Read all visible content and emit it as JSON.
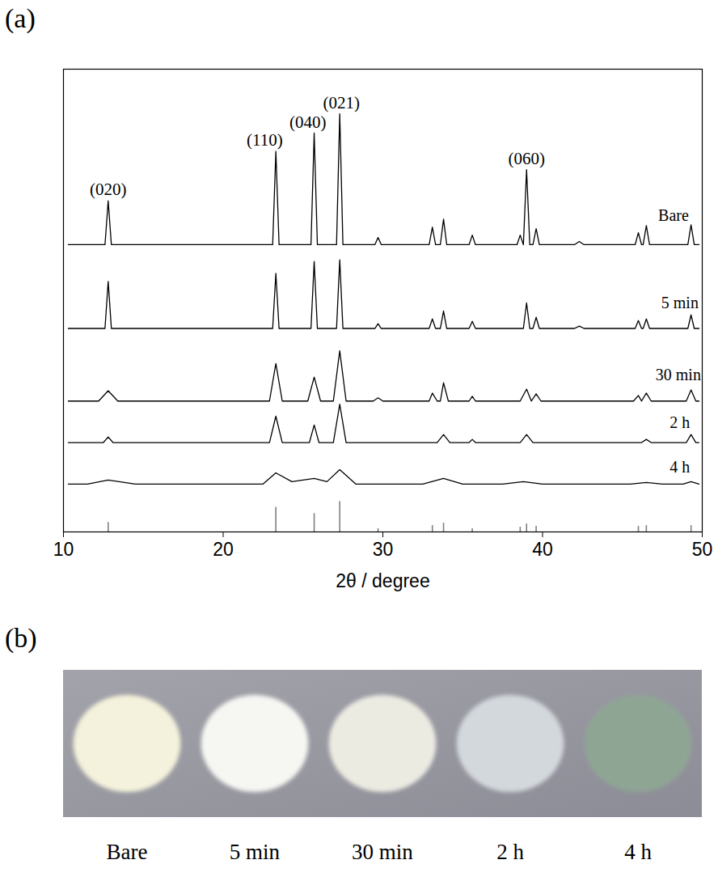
{
  "chart_data": {
    "type": "line",
    "panel_label": "(a)",
    "xlabel": "2θ / degree",
    "xlim": [
      10,
      50
    ],
    "xticks": [
      10,
      20,
      30,
      40,
      50
    ],
    "ylim": [
      0,
      580
    ],
    "tick_labels": "x",
    "series": [
      {
        "name": "Bare",
        "color": "#000000",
        "label_at": [
          48.2,
          390
        ],
        "x": [
          10.3,
          12.6,
          12.8,
          13.0,
          23.1,
          23.3,
          23.5,
          25.5,
          25.7,
          25.9,
          27.1,
          27.3,
          27.5,
          29.5,
          29.7,
          29.9,
          32.9,
          33.1,
          33.3,
          33.6,
          33.8,
          34.0,
          35.4,
          35.6,
          35.8,
          38.4,
          38.6,
          38.8,
          39.0,
          39.2,
          39.4,
          39.6,
          39.8,
          42.0,
          42.3,
          42.6,
          45.8,
          46.0,
          46.2,
          46.3,
          46.5,
          46.7,
          49.1,
          49.3,
          49.5,
          49.8
        ],
        "values": [
          360,
          360,
          415,
          360,
          360,
          477,
          360,
          360,
          500,
          360,
          360,
          524,
          360,
          360,
          369,
          360,
          360,
          382,
          360,
          360,
          392,
          360,
          360,
          372,
          360,
          360,
          372,
          360,
          454,
          360,
          360,
          380,
          360,
          360,
          364,
          360,
          360,
          375,
          360,
          360,
          384,
          360,
          360,
          385,
          360,
          360
        ]
      },
      {
        "name": "5 min",
        "color": "#000000",
        "label_at": [
          48.6,
          280
        ],
        "x": [
          10.3,
          12.6,
          12.8,
          13.0,
          23.1,
          23.3,
          23.5,
          25.5,
          25.7,
          25.9,
          27.1,
          27.3,
          27.5,
          29.5,
          29.7,
          29.9,
          32.9,
          33.1,
          33.3,
          33.6,
          33.8,
          34.0,
          35.4,
          35.6,
          35.8,
          38.4,
          38.6,
          38.8,
          39.0,
          39.2,
          39.4,
          39.6,
          39.8,
          42.0,
          42.3,
          42.6,
          45.8,
          46.0,
          46.2,
          46.3,
          46.5,
          46.7,
          49.1,
          49.3,
          49.5,
          49.8
        ],
        "values": [
          255,
          255,
          314,
          255,
          255,
          324,
          255,
          255,
          339,
          255,
          255,
          341,
          255,
          255,
          261,
          255,
          255,
          267,
          255,
          255,
          277,
          255,
          255,
          264,
          255,
          255,
          255,
          255,
          287,
          255,
          255,
          269,
          255,
          255,
          258,
          255,
          255,
          265,
          255,
          255,
          267,
          255,
          255,
          272,
          255,
          255
        ]
      },
      {
        "name": "30 min",
        "color": "#000000",
        "label_at": [
          48.5,
          190
        ],
        "x": [
          10.3,
          12.2,
          12.8,
          13.4,
          22.9,
          23.3,
          23.7,
          25.3,
          25.7,
          26.1,
          26.9,
          27.3,
          27.7,
          29.4,
          29.7,
          30.0,
          32.9,
          33.1,
          33.4,
          33.6,
          33.8,
          34.1,
          35.4,
          35.6,
          35.8,
          38.6,
          39.0,
          39.3,
          39.6,
          39.9,
          45.7,
          46.0,
          46.2,
          46.5,
          46.8,
          49.0,
          49.3,
          49.6,
          49.8
        ],
        "values": [
          164,
          164,
          177,
          164,
          164,
          211,
          164,
          164,
          194,
          164,
          164,
          227,
          164,
          164,
          168,
          164,
          164,
          174,
          164,
          164,
          187,
          164,
          164,
          170,
          164,
          164,
          179,
          164,
          173,
          164,
          164,
          171,
          164,
          174,
          164,
          164,
          178,
          164,
          164
        ]
      },
      {
        "name": "2 h",
        "color": "#000000",
        "label_at": [
          48.6,
          130
        ],
        "x": [
          10.3,
          12.5,
          12.8,
          13.1,
          22.9,
          23.3,
          23.7,
          25.4,
          25.7,
          26.0,
          26.9,
          27.3,
          27.7,
          33.4,
          33.8,
          34.2,
          35.4,
          35.6,
          35.8,
          38.6,
          39.0,
          39.4,
          46.2,
          46.5,
          46.8,
          49.0,
          49.3,
          49.6,
          49.8
        ],
        "values": [
          112,
          112,
          119,
          112,
          112,
          145,
          112,
          112,
          134,
          112,
          112,
          160,
          112,
          112,
          122,
          112,
          112,
          116,
          112,
          112,
          122,
          112,
          112,
          116,
          112,
          112,
          122,
          112,
          112
        ]
      },
      {
        "name": "4 h",
        "color": "#000000",
        "label_at": [
          48.6,
          75
        ],
        "x": [
          10.3,
          11.5,
          12.8,
          14.5,
          22.5,
          23.3,
          24.3,
          25.7,
          26.5,
          27.3,
          28.3,
          32.5,
          33.8,
          35.0,
          37.5,
          38.8,
          40.0,
          45.5,
          46.5,
          47.5,
          48.8,
          49.3,
          49.8
        ],
        "values": [
          60,
          60,
          65,
          60,
          60,
          74,
          63,
          67,
          63,
          78,
          60,
          60,
          67,
          60,
          60,
          63,
          60,
          60,
          62,
          60,
          60,
          63,
          60
        ]
      },
      {
        "type": "stick",
        "color": "#808080",
        "x": [
          12.8,
          23.3,
          25.7,
          27.3,
          29.7,
          33.1,
          33.8,
          35.6,
          38.6,
          39.0,
          39.6,
          46.0,
          46.5,
          49.3
        ],
        "values": [
          12,
          31,
          23,
          38,
          4,
          8,
          11,
          4,
          6,
          10,
          7,
          7,
          8,
          8
        ]
      }
    ],
    "annotations": [
      {
        "text": "(020)",
        "x": 12.8,
        "y": 422
      },
      {
        "text": "(110)",
        "x": 22.6,
        "y": 484
      },
      {
        "text": "(040)",
        "x": 25.3,
        "y": 506
      },
      {
        "text": "(021)",
        "x": 27.4,
        "y": 531
      },
      {
        "text": "(060)",
        "x": 39.0,
        "y": 461
      }
    ]
  },
  "photo": {
    "panel_label": "(b)",
    "samples": [
      {
        "label": "Bare",
        "color": "#f4f2dc"
      },
      {
        "label": "5 min",
        "color": "#f6f6f3"
      },
      {
        "label": "30 min",
        "color": "#ecebe2"
      },
      {
        "label": "2 h",
        "color": "#d3d8dc"
      },
      {
        "label": "4 h",
        "color": "#8fa594"
      }
    ]
  }
}
